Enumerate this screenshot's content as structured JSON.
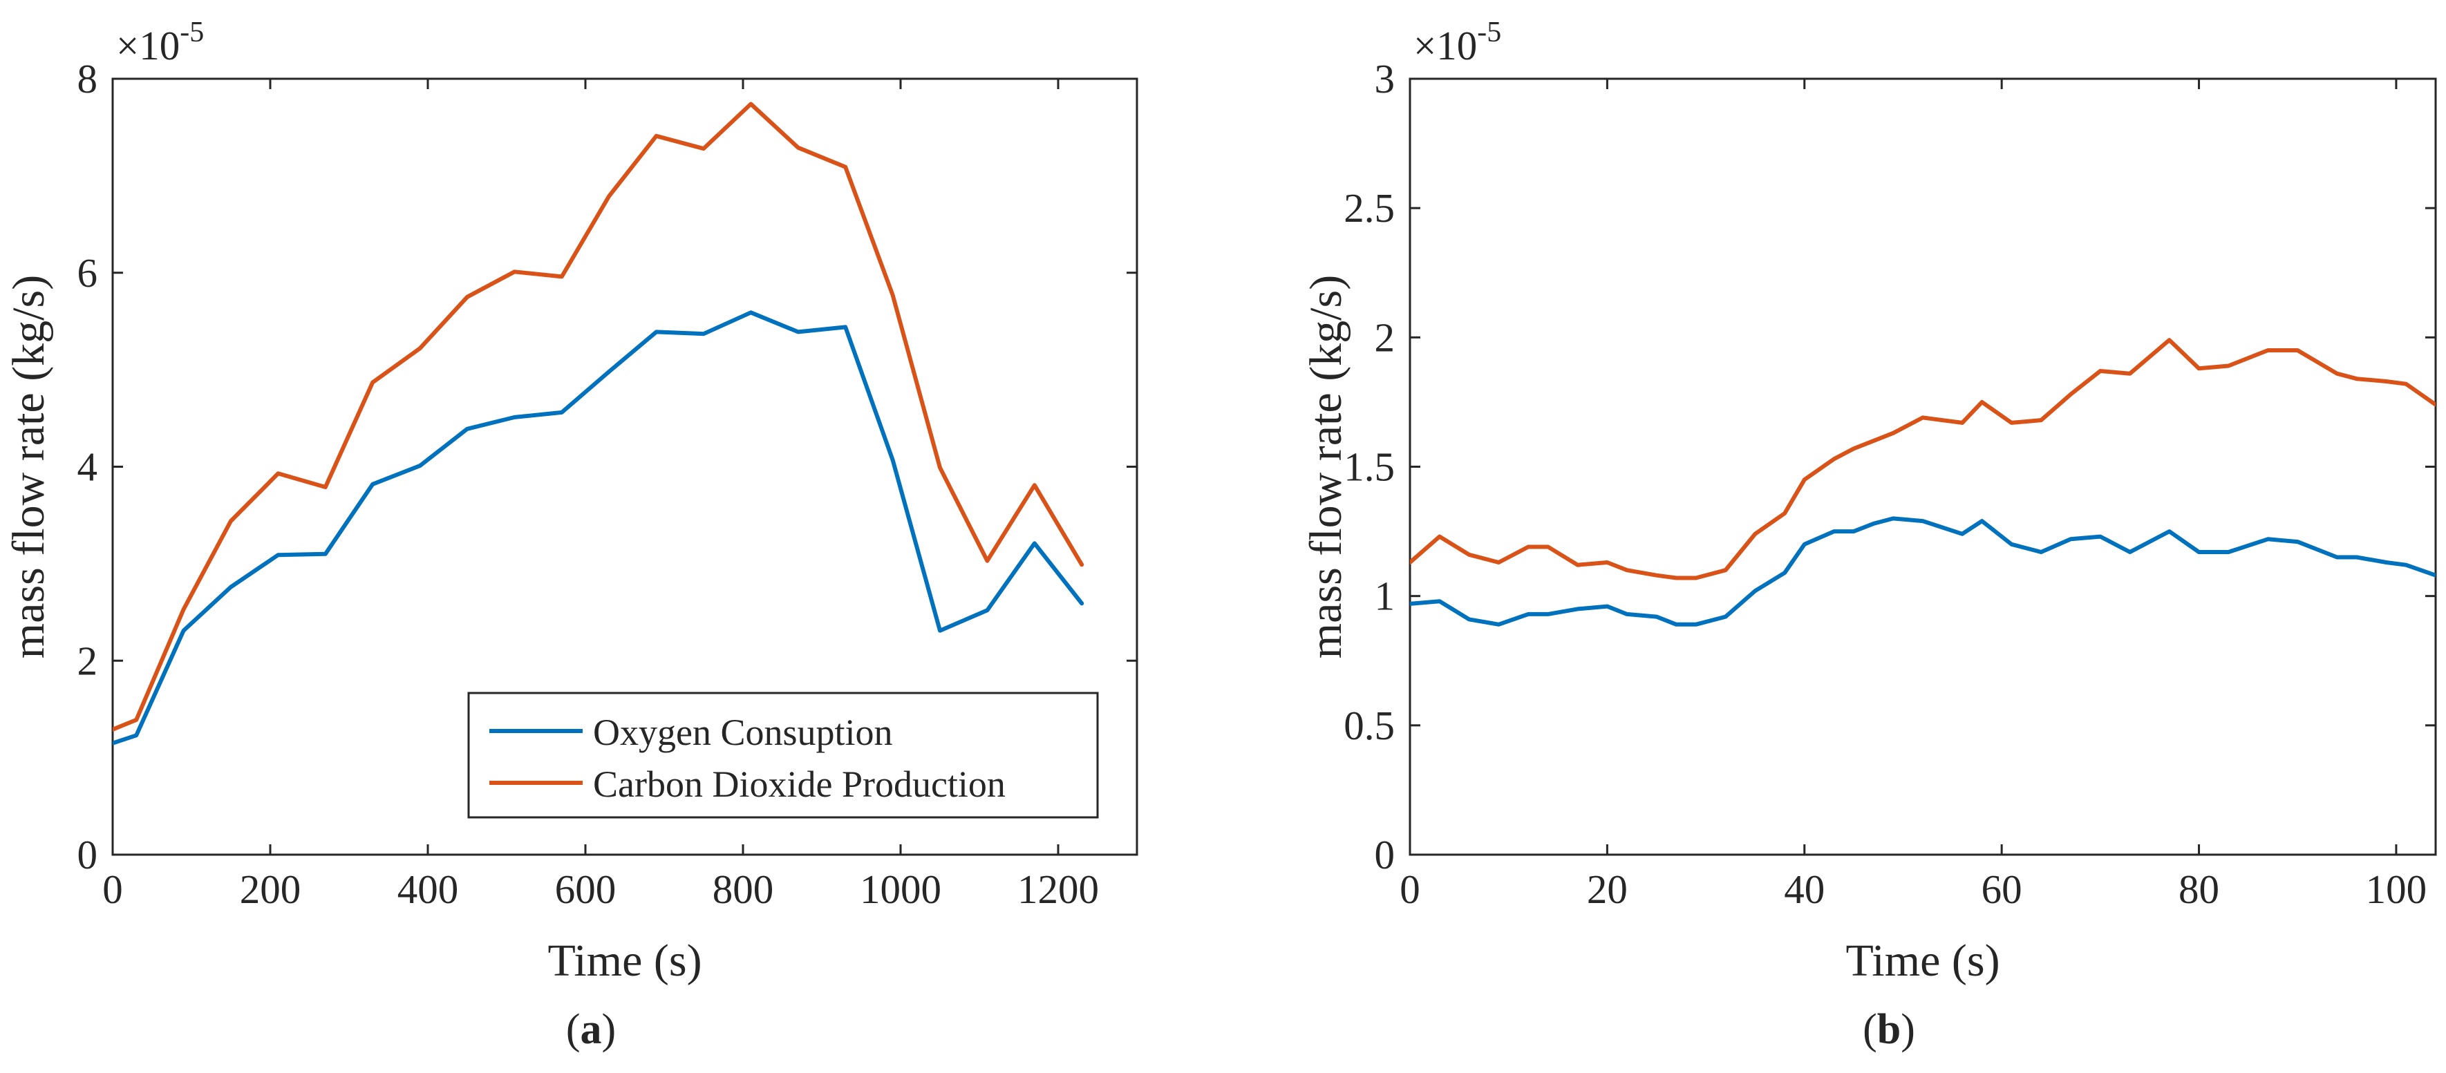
{
  "colors": {
    "oxygen": "#0072BD",
    "co2": "#D95319",
    "axis": "#262626"
  },
  "chart_data": [
    {
      "type": "line",
      "panel_label": "(a)",
      "xlabel": "Time (s)",
      "ylabel": "mass flow rate (kg/s)",
      "y_exponent_label": "×10",
      "y_exponent": "-5",
      "xlim": [
        0,
        1300
      ],
      "ylim": [
        0,
        8
      ],
      "xticks": [
        0,
        200,
        400,
        600,
        800,
        1000,
        1200
      ],
      "xtick_labels": [
        "0",
        "200",
        "400",
        "600",
        "800",
        "1000",
        "1200"
      ],
      "yticks": [
        0,
        2,
        4,
        6,
        8
      ],
      "ytick_labels": [
        "0",
        "2",
        "4",
        "6",
        "8"
      ],
      "legend": {
        "position": "lower-right",
        "entries": [
          "Oxygen Consuption",
          "Carbon Dioxide Production"
        ]
      },
      "series": [
        {
          "name": "Oxygen Consuption",
          "color": "#0072BD",
          "x": [
            0,
            30,
            90,
            150,
            210,
            270,
            330,
            390,
            450,
            510,
            570,
            630,
            690,
            750,
            810,
            870,
            930,
            990,
            1050,
            1110,
            1170,
            1230
          ],
          "y": [
            1.15,
            1.23,
            2.31,
            2.76,
            3.09,
            3.1,
            3.82,
            4.01,
            4.39,
            4.51,
            4.56,
            4.98,
            5.39,
            5.37,
            5.59,
            5.39,
            5.44,
            4.07,
            2.31,
            2.52,
            3.21,
            2.59
          ]
        },
        {
          "name": "Carbon Dioxide Production",
          "color": "#D95319",
          "x": [
            0,
            30,
            90,
            150,
            210,
            270,
            330,
            390,
            450,
            510,
            570,
            630,
            690,
            750,
            810,
            870,
            930,
            990,
            1050,
            1110,
            1170,
            1230
          ],
          "y": [
            1.29,
            1.39,
            2.53,
            3.44,
            3.93,
            3.79,
            4.87,
            5.22,
            5.75,
            6.01,
            5.96,
            6.79,
            7.41,
            7.28,
            7.74,
            7.29,
            7.09,
            5.77,
            3.99,
            3.03,
            3.81,
            2.99
          ]
        }
      ]
    },
    {
      "type": "line",
      "panel_label": "(b)",
      "xlabel": "Time (s)",
      "ylabel": "mass flow rate (kg/s)",
      "y_exponent_label": "×10",
      "y_exponent": "-5",
      "xlim": [
        0,
        104
      ],
      "ylim": [
        0,
        3
      ],
      "xticks": [
        0,
        20,
        40,
        60,
        80,
        100
      ],
      "xtick_labels": [
        "0",
        "20",
        "40",
        "60",
        "80",
        "100"
      ],
      "yticks": [
        0,
        0.5,
        1,
        1.5,
        2,
        2.5,
        3
      ],
      "ytick_labels": [
        "0",
        "0.5",
        "1",
        "1.5",
        "2",
        "2.5",
        "3"
      ],
      "series": [
        {
          "name": "Oxygen Consuption",
          "color": "#0072BD",
          "x": [
            0,
            3,
            6,
            9,
            12,
            14,
            17,
            20,
            22,
            25,
            27,
            29,
            32,
            35,
            38,
            40,
            43,
            45,
            47,
            49,
            52,
            56,
            58,
            61,
            64,
            67,
            70,
            73,
            77,
            80,
            83,
            87,
            90,
            94,
            96,
            99,
            101,
            104
          ],
          "y": [
            0.97,
            0.98,
            0.91,
            0.89,
            0.93,
            0.93,
            0.95,
            0.96,
            0.93,
            0.92,
            0.89,
            0.89,
            0.92,
            1.02,
            1.09,
            1.2,
            1.25,
            1.25,
            1.28,
            1.3,
            1.29,
            1.24,
            1.29,
            1.2,
            1.17,
            1.22,
            1.23,
            1.17,
            1.25,
            1.17,
            1.17,
            1.22,
            1.21,
            1.15,
            1.15,
            1.13,
            1.12,
            1.08
          ]
        },
        {
          "name": "Carbon Dioxide Production",
          "color": "#D95319",
          "x": [
            0,
            3,
            6,
            9,
            12,
            14,
            17,
            20,
            22,
            25,
            27,
            29,
            32,
            35,
            38,
            40,
            43,
            45,
            47,
            49,
            52,
            56,
            58,
            61,
            64,
            67,
            70,
            73,
            77,
            80,
            83,
            87,
            90,
            94,
            96,
            99,
            101,
            104
          ],
          "y": [
            1.13,
            1.23,
            1.16,
            1.13,
            1.19,
            1.19,
            1.12,
            1.13,
            1.1,
            1.08,
            1.07,
            1.07,
            1.1,
            1.24,
            1.32,
            1.45,
            1.53,
            1.57,
            1.6,
            1.63,
            1.69,
            1.67,
            1.75,
            1.67,
            1.68,
            1.78,
            1.87,
            1.86,
            1.99,
            1.88,
            1.89,
            1.95,
            1.95,
            1.86,
            1.84,
            1.83,
            1.82,
            1.74
          ]
        }
      ]
    }
  ]
}
